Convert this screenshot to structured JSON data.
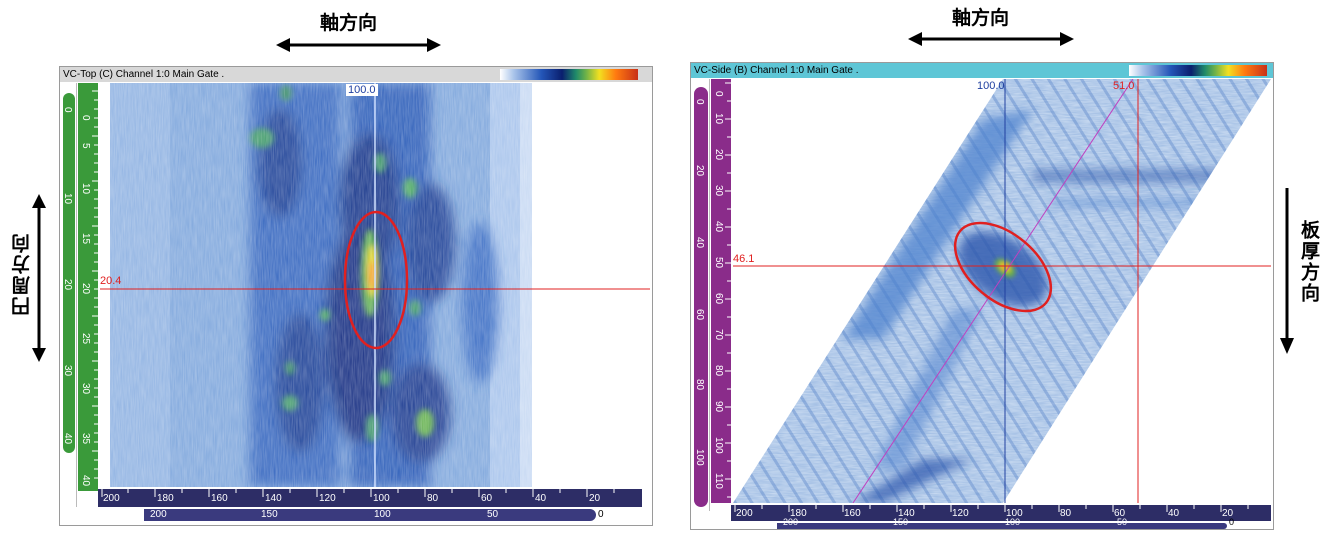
{
  "annotations": {
    "axial_left": "軸方向",
    "axial_right": "軸方向",
    "circumferential": "円周方向",
    "thickness": "板厚方向"
  },
  "top_view": {
    "title": "VC-Top (C) Channel 1:0 Main Gate .",
    "cursor_x_readout": "100.0",
    "cursor_y_readout": "20.4",
    "vertical_ticks": [
      "0",
      "5",
      "10",
      "15",
      "20",
      "25",
      "30",
      "35",
      "40"
    ],
    "outer_scale_labels": [
      "0",
      "10",
      "20",
      "30",
      "40"
    ],
    "horizontal_ticks": [
      "200",
      "180",
      "160",
      "140",
      "120",
      "100",
      "80",
      "60",
      "40",
      "20"
    ],
    "secondary_scale_labels": [
      "200",
      "150",
      "100",
      "50",
      "0"
    ]
  },
  "side_view": {
    "title": "VC-Side (B) Channel 1:0 Main Gate .",
    "cursor_x_readout": "100.0",
    "cursor_x2_readout": "51.0",
    "cursor_y_readout": "46.1",
    "vertical_ticks": [
      "0",
      "10",
      "20",
      "30",
      "40",
      "50",
      "60",
      "70",
      "80",
      "90",
      "100",
      "110"
    ],
    "outer_scale_labels": [
      "0",
      "20",
      "40",
      "60",
      "80",
      "100"
    ],
    "horizontal_ticks": [
      "200",
      "180",
      "160",
      "140",
      "120",
      "100",
      "80",
      "60",
      "40",
      "20"
    ],
    "secondary_scale_labels": [
      "200",
      "150",
      "100",
      "50",
      "0"
    ]
  },
  "colors": {
    "left_title_bg": "#d8d8d8",
    "right_title_bg": "#5ec6d6",
    "left_vscale": "#3a9a3a",
    "right_vscale": "#8a2c8a",
    "cursor_red": "#e02020",
    "cursor_blue": "#2040a0",
    "scale_navy": "#2d2d66"
  }
}
